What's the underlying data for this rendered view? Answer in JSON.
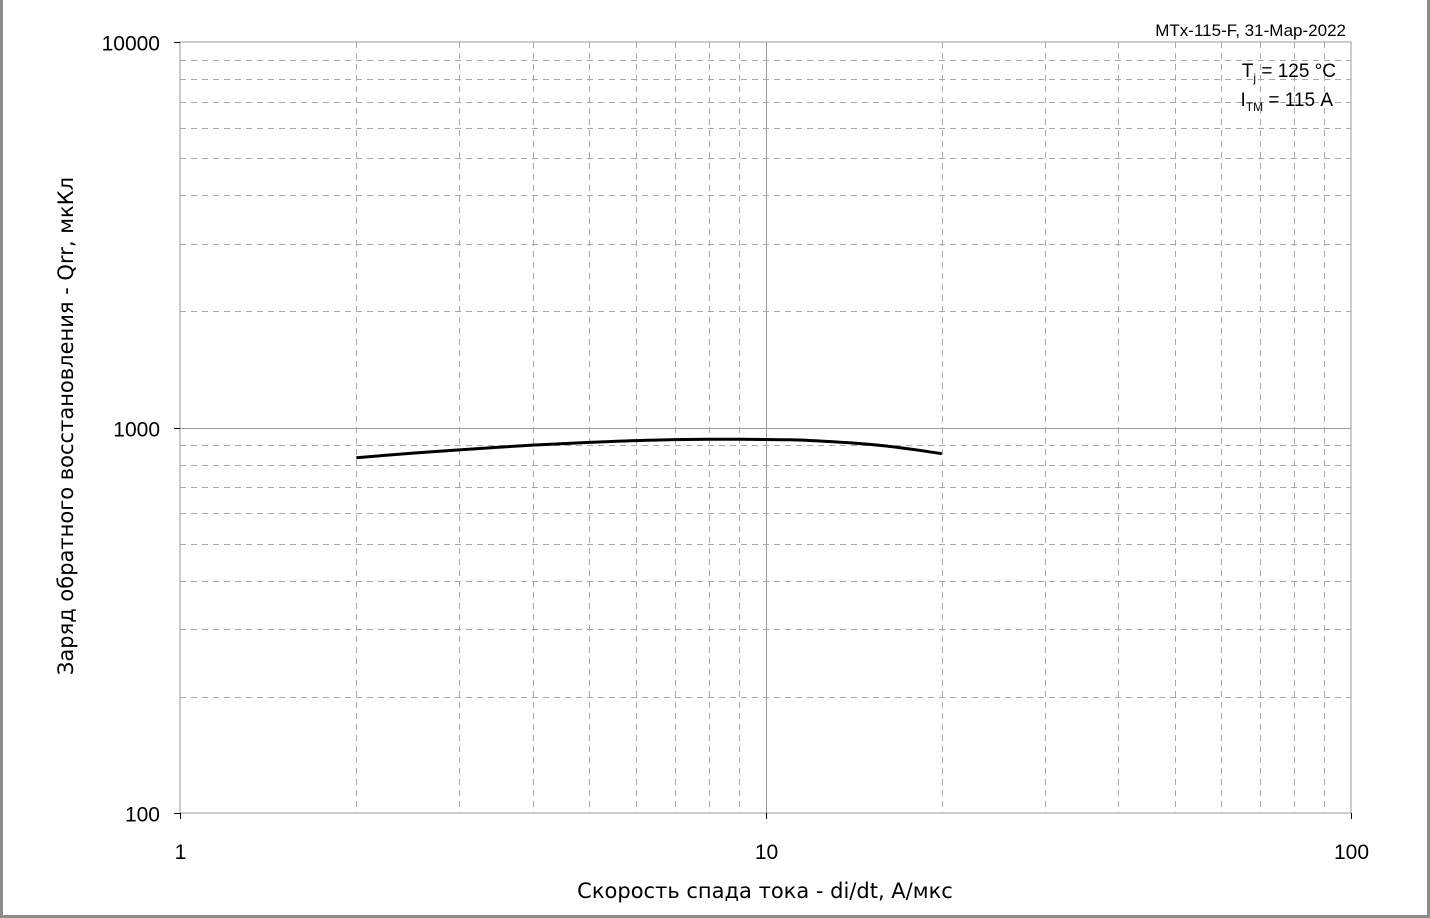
{
  "chart_data": {
    "type": "line",
    "xscale": "log",
    "yscale": "log",
    "xlim": [
      1,
      100
    ],
    "ylim": [
      100,
      10000
    ],
    "xticks": [
      "1",
      "10",
      "100"
    ],
    "yticks": [
      "100",
      "1000",
      "10000"
    ],
    "xlabel": "Скорость спада тока - di/dt, А/мкс",
    "ylabel": "Заряд обратного восстановления - Qrr, мкКл",
    "grid": true,
    "source_label": "MTx-115-F, 31-Мар-2022",
    "conditions": [
      {
        "main": "T",
        "sub": "j",
        "rest": " = 125 °C"
      },
      {
        "main": "I",
        "sub": "ТМ",
        "rest": " = 115 А"
      }
    ],
    "series": [
      {
        "color": "#000000",
        "points": [
          [
            2,
            835
          ],
          [
            2.5,
            858
          ],
          [
            3,
            875
          ],
          [
            4,
            900
          ],
          [
            5,
            915
          ],
          [
            6,
            925
          ],
          [
            7,
            930
          ],
          [
            8,
            932
          ],
          [
            9,
            932
          ],
          [
            10,
            931
          ],
          [
            11,
            929
          ],
          [
            12,
            925
          ],
          [
            14,
            912
          ],
          [
            16,
            896
          ],
          [
            18,
            876
          ],
          [
            20,
            855
          ]
        ]
      }
    ]
  }
}
